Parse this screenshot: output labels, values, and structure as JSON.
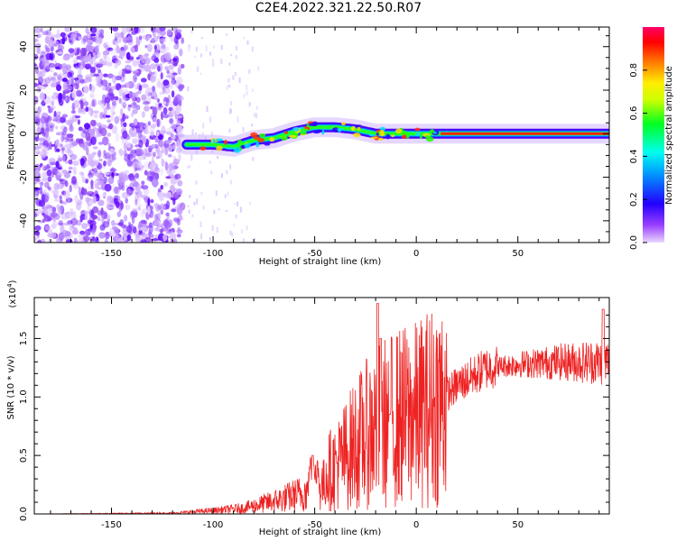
{
  "title": "C2E4.2022.321.22.50.R07",
  "chart_data": [
    {
      "type": "heatmap",
      "xlabel": "Height of straight line (km)",
      "ylabel": "Frequency (Hz)",
      "xlim": [
        -188,
        95
      ],
      "ylim": [
        -50,
        49
      ],
      "xticks": [
        -150,
        -100,
        -50,
        0,
        50
      ],
      "yticks": [
        -40,
        -20,
        0,
        20,
        40
      ],
      "ridge": [
        {
          "x": -113,
          "y": -5
        },
        {
          "x": -100,
          "y": -5
        },
        {
          "x": -90,
          "y": -6
        },
        {
          "x": -80,
          "y": -3
        },
        {
          "x": -70,
          "y": -2
        },
        {
          "x": -60,
          "y": 1
        },
        {
          "x": -50,
          "y": 3
        },
        {
          "x": -40,
          "y": 3
        },
        {
          "x": -30,
          "y": 2
        },
        {
          "x": -20,
          "y": 0
        },
        {
          "x": -10,
          "y": 0
        },
        {
          "x": 0,
          "y": 0
        },
        {
          "x": 12,
          "y": 0
        },
        {
          "x": 95,
          "y": 0
        }
      ],
      "noise_region": {
        "x_min": -188,
        "x_max": -115
      }
    },
    {
      "type": "line",
      "xlabel": "Height of straight line (km)",
      "ylabel": "SNR (10 * v/v)",
      "scale_note": "(x10",
      "scale_exp": "4",
      "scale_close": ")",
      "xlim": [
        -188,
        95
      ],
      "ylim": [
        0,
        1.85
      ],
      "xticks": [
        -150,
        -100,
        -50,
        0,
        50
      ],
      "yticks": [
        "0.0",
        "0.5",
        "1.0",
        "1.5"
      ],
      "envelope": [
        {
          "x": -188,
          "y": 0.0
        },
        {
          "x": -120,
          "y": 0.01
        },
        {
          "x": -100,
          "y": 0.04
        },
        {
          "x": -85,
          "y": 0.07
        },
        {
          "x": -70,
          "y": 0.15
        },
        {
          "x": -55,
          "y": 0.25
        },
        {
          "x": -40,
          "y": 0.4
        },
        {
          "x": -30,
          "y": 0.6
        },
        {
          "x": -20,
          "y": 0.75
        },
        {
          "x": -10,
          "y": 0.82
        },
        {
          "x": 0,
          "y": 0.85
        },
        {
          "x": 10,
          "y": 0.95
        },
        {
          "x": 20,
          "y": 1.1
        },
        {
          "x": 35,
          "y": 1.25
        },
        {
          "x": 50,
          "y": 1.28
        },
        {
          "x": 70,
          "y": 1.3
        },
        {
          "x": 95,
          "y": 1.3
        }
      ],
      "spikes": [
        {
          "x": -51,
          "y": 0.5
        },
        {
          "x": -19,
          "y": 1.8
        },
        {
          "x": -17.5,
          "y": 1.5
        },
        {
          "x": -13,
          "y": 0.85
        },
        {
          "x": 92,
          "y": 1.75
        }
      ],
      "line_color": "#ee2222"
    }
  ],
  "colorbar": {
    "label": "Normalized spectral amplitude",
    "ticks": [
      "0.0",
      "0.2",
      "0.4",
      "0.6",
      "0.8"
    ],
    "range": [
      0,
      1
    ]
  }
}
